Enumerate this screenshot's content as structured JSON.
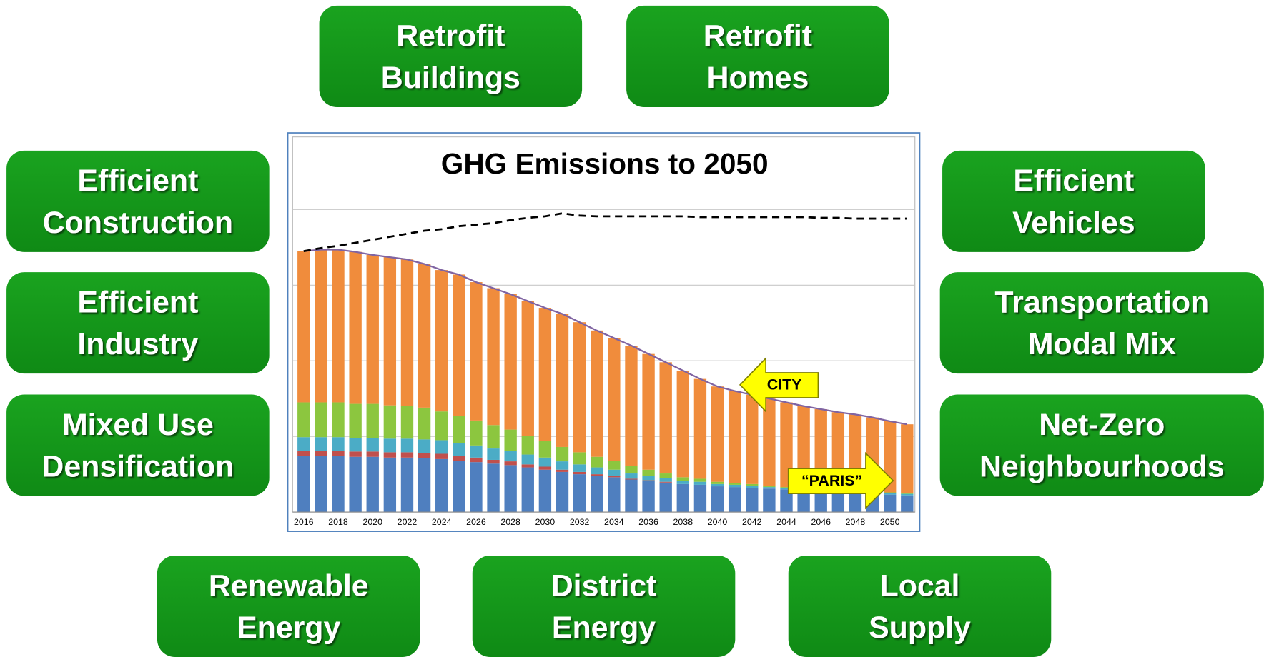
{
  "boxes": [
    {
      "lines": [
        "Retrofit",
        "Buildings"
      ]
    },
    {
      "lines": [
        "Retrofit",
        "Homes"
      ]
    },
    {
      "lines": [
        "Efficient",
        "Construction"
      ]
    },
    {
      "lines": [
        "Efficient",
        "Industry"
      ]
    },
    {
      "lines": [
        "Mixed Use",
        "Densification"
      ]
    },
    {
      "lines": [
        "Efficient",
        "Vehicles"
      ]
    },
    {
      "lines": [
        "Transportation",
        "Modal Mix"
      ]
    },
    {
      "lines": [
        "Net-Zero",
        "Neighbourhoods"
      ]
    },
    {
      "lines": [
        "Renewable",
        "Energy"
      ]
    },
    {
      "lines": [
        "District",
        "Energy"
      ]
    },
    {
      "lines": [
        "Local",
        "Supply"
      ]
    }
  ],
  "chart_data": {
    "type": "stacked_bar",
    "title": "GHG Emissions to 2050",
    "categories": [
      "2016",
      null,
      "2018",
      null,
      "2020",
      null,
      "2022",
      null,
      "2024",
      null,
      "2026",
      null,
      "2028",
      null,
      "2030",
      null,
      "2032",
      null,
      "2034",
      null,
      "2036",
      null,
      "2038",
      null,
      "2040",
      null,
      "2042",
      null,
      "2044",
      null,
      "2046",
      null,
      "2048",
      null,
      "2050",
      null
    ],
    "ylim": [
      0,
      4.96
    ],
    "yticks": [
      1,
      2,
      3,
      4
    ],
    "grid": true,
    "series": [
      {
        "color": "#4f7fbf",
        "values": [
          0.74,
          0.74,
          0.74,
          0.73,
          0.73,
          0.72,
          0.72,
          0.71,
          0.7,
          0.68,
          0.66,
          0.64,
          0.62,
          0.59,
          0.56,
          0.53,
          0.5,
          0.48,
          0.46,
          0.43,
          0.41,
          0.39,
          0.37,
          0.36,
          0.34,
          0.33,
          0.32,
          0.31,
          0.3,
          0.29,
          0.28,
          0.27,
          0.26,
          0.25,
          0.23,
          0.22
        ]
      },
      {
        "color": "#c0504d",
        "values": [
          0.07,
          0.07,
          0.07,
          0.07,
          0.07,
          0.07,
          0.07,
          0.07,
          0.07,
          0.06,
          0.06,
          0.05,
          0.05,
          0.04,
          0.04,
          0.03,
          0.03,
          0.02,
          0.02,
          0.01,
          0.01,
          0.01,
          0,
          0,
          0,
          0,
          0,
          0,
          0,
          0,
          0,
          0,
          0,
          0,
          0,
          0
        ]
      },
      {
        "color": "#4bacc6",
        "values": [
          0.18,
          0.18,
          0.18,
          0.18,
          0.18,
          0.18,
          0.18,
          0.18,
          0.18,
          0.17,
          0.16,
          0.15,
          0.14,
          0.13,
          0.12,
          0.11,
          0.1,
          0.09,
          0.08,
          0.07,
          0.06,
          0.05,
          0.04,
          0.04,
          0.03,
          0.03,
          0.03,
          0.02,
          0.02,
          0.02,
          0.02,
          0.02,
          0.02,
          0.02,
          0.02,
          0.02
        ]
      },
      {
        "color": "#8cc63f",
        "values": [
          0.46,
          0.46,
          0.46,
          0.45,
          0.45,
          0.44,
          0.43,
          0.42,
          0.38,
          0.36,
          0.33,
          0.31,
          0.28,
          0.25,
          0.22,
          0.19,
          0.16,
          0.14,
          0.12,
          0.1,
          0.08,
          0.06,
          0.05,
          0.04,
          0.03,
          0.02,
          0.02,
          0.01,
          0.01,
          0.01,
          0.01,
          0.01,
          0.01,
          0.01,
          0.01,
          0.01
        ]
      },
      {
        "color": "#f08c3c",
        "values": [
          2.0,
          2.02,
          2.02,
          2.01,
          1.97,
          1.96,
          1.94,
          1.9,
          1.87,
          1.87,
          1.83,
          1.81,
          1.79,
          1.78,
          1.76,
          1.76,
          1.72,
          1.67,
          1.62,
          1.59,
          1.53,
          1.47,
          1.41,
          1.32,
          1.26,
          1.22,
          1.18,
          1.16,
          1.12,
          1.08,
          1.05,
          1.02,
          1.0,
          0.97,
          0.94,
          0.91
        ]
      }
    ],
    "outline_color": "#8064a2",
    "dashed_line": {
      "color": "#000000",
      "values": [
        3.45,
        3.49,
        3.52,
        3.56,
        3.6,
        3.64,
        3.68,
        3.72,
        3.74,
        3.78,
        3.8,
        3.82,
        3.86,
        3.89,
        3.91,
        3.95,
        3.92,
        3.91,
        3.91,
        3.91,
        3.91,
        3.91,
        3.91,
        3.9,
        3.9,
        3.9,
        3.9,
        3.9,
        3.9,
        3.9,
        3.89,
        3.89,
        3.88,
        3.88,
        3.88,
        3.88
      ]
    },
    "annotations": [
      "CITY",
      "“PARIS”"
    ]
  }
}
